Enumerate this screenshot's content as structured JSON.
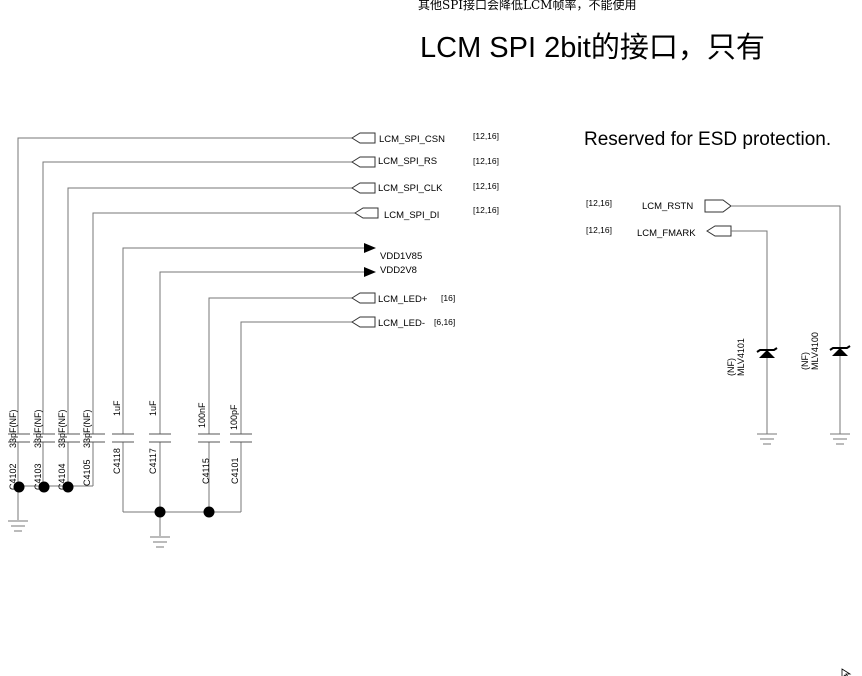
{
  "notes": {
    "top_note": "其他SPI接口会降低LCM帧率，不能使用",
    "big_note": "LCM SPI  2bit的接口，只有",
    "esd_note": "Reserved for ESD protection."
  },
  "left_nets": [
    {
      "name": "LCM_SPI_CSN",
      "ref": "[12,16]"
    },
    {
      "name": "LCM_SPI_RS",
      "ref": "[12,16]"
    },
    {
      "name": "LCM_SPI_CLK",
      "ref": "[12,16]"
    },
    {
      "name": "LCM_SPI_DI",
      "ref": "[12,16]"
    }
  ],
  "power_nets": [
    "VDD1V85",
    "VDD2V8"
  ],
  "led_nets": [
    {
      "name": "LCM_LED+",
      "ref": "[16]"
    },
    {
      "name": "LCM_LED-",
      "ref": "[6,16]"
    }
  ],
  "right_nets": [
    {
      "name": "LCM_RSTN",
      "ref": "[12,16]"
    },
    {
      "name": "LCM_FMARK",
      "ref": "[12,16]"
    }
  ],
  "capacitors": [
    {
      "ref": "C4102",
      "value": "33pF(NF)"
    },
    {
      "ref": "C4103",
      "value": "33pF(NF)"
    },
    {
      "ref": "C4104",
      "value": "33pF(NF)"
    },
    {
      "ref": "C4105",
      "value": "33pF(NF)"
    },
    {
      "ref": "C4118",
      "value": "1uF"
    },
    {
      "ref": "C4117",
      "value": "1uF"
    },
    {
      "ref": "C4115",
      "value": "100nF"
    },
    {
      "ref": "C4101",
      "value": "100pF"
    }
  ],
  "tvs": [
    {
      "ref": "MLV4101",
      "nf": "(NF)"
    },
    {
      "ref": "MLV4100",
      "nf": "(NF)"
    }
  ],
  "cursor_icon": "cursor-arrow-icon"
}
